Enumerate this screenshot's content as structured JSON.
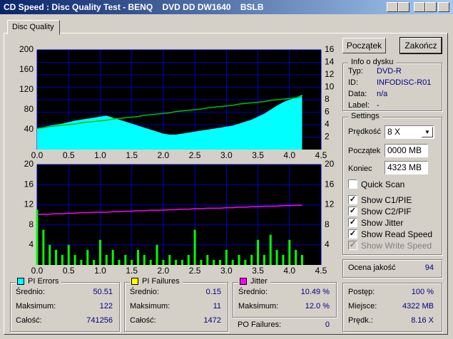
{
  "window": {
    "title": "CD Speed : Disc Quality Test - BENQ    DVD DD DW1640    BSLB"
  },
  "tab": "Disc Quality",
  "buttons": [
    "Początek",
    "Zakończ"
  ],
  "info": {
    "title": "Info o dysku",
    "rows": [
      [
        "Typ:",
        "DVD-R"
      ],
      [
        "ID:",
        "INFODISC-R01"
      ],
      [
        "Data:",
        "n/a"
      ],
      [
        "Label:",
        "-"
      ]
    ]
  },
  "settings": {
    "title": "Settings",
    "speed_label": "Prędkość",
    "speed": "8 X",
    "start_label": "Początek",
    "start": "0000 MB",
    "end_label": "Koniec",
    "end": "4323 MB",
    "checks": [
      {
        "label": "Quick Scan",
        "checked": false,
        "enabled": true
      },
      {
        "label": "Show C1/PIE",
        "checked": true,
        "enabled": true
      },
      {
        "label": "Show C2/PIF",
        "checked": true,
        "enabled": true
      },
      {
        "label": "Show Jitter",
        "checked": true,
        "enabled": true
      },
      {
        "label": "Show Read Speed",
        "checked": true,
        "enabled": true
      },
      {
        "label": "Show Write Speed",
        "checked": true,
        "enabled": false
      }
    ]
  },
  "quality": {
    "label": "Ocena jakość",
    "value": "94"
  },
  "progress": [
    [
      "Postęp:",
      "100 %"
    ],
    [
      "Miejsce:",
      "4322 MB"
    ],
    [
      "Prędk.:",
      "8.16 X"
    ]
  ],
  "stats": [
    {
      "title": "PI Errors",
      "color": "#00ffff",
      "rows": [
        [
          "Średnio:",
          "50.51"
        ],
        [
          "Maksimum:",
          "122"
        ],
        [
          "Całość:",
          "741256"
        ]
      ]
    },
    {
      "title": "PI Failures",
      "color": "#ffff00",
      "rows": [
        [
          "Średnio:",
          "0.15"
        ],
        [
          "Maksimum:",
          "11"
        ],
        [
          "Całość:",
          "1472"
        ]
      ]
    },
    {
      "title": "Jitter",
      "color": "#ff00ff",
      "rows": [
        [
          "Średnio:",
          "10.49 %"
        ],
        [
          "Maksimum:",
          "12.0 %"
        ]
      ]
    }
  ],
  "po_failures": [
    "PO Failures:",
    "0"
  ],
  "chart_data": [
    {
      "type": "area",
      "grid": "y2",
      "xlim": [
        0,
        4.5
      ],
      "ylim": [
        0,
        200
      ],
      "y2lim": [
        0,
        16
      ],
      "xticks": [
        {
          "value": 0,
          "label": "0.0"
        },
        0.5,
        {
          "value": 1,
          "label": "1.0"
        },
        1.5,
        {
          "value": 2,
          "label": "2.0"
        },
        2.5,
        {
          "value": 3,
          "label": "3.0"
        },
        3.5,
        {
          "value": 4,
          "label": "4.0"
        },
        4.5
      ],
      "yticks": [
        40,
        80,
        120,
        160,
        200
      ],
      "y2ticks": [
        2,
        4,
        6,
        8,
        10,
        12,
        14,
        16
      ],
      "x": [
        0,
        0.1,
        0.2,
        0.3,
        0.4,
        0.5,
        0.6,
        0.7,
        0.8,
        0.9,
        1,
        1.1,
        1.2,
        1.3,
        1.4,
        1.5,
        1.6,
        1.7,
        1.8,
        1.9,
        2,
        2.1,
        2.2,
        2.3,
        2.4,
        2.5,
        2.6,
        2.7,
        2.8,
        2.9,
        3,
        3.1,
        3.2,
        3.3,
        3.4,
        3.5,
        3.6,
        3.7,
        3.8,
        3.9,
        4,
        4.1,
        4.2
      ],
      "series": [
        {
          "color": "#00ffff",
          "values": [
            42,
            45,
            48,
            50,
            52,
            55,
            58,
            60,
            62,
            64,
            66,
            68,
            64,
            60,
            56,
            52,
            48,
            44,
            40,
            36,
            32,
            30,
            30,
            32,
            34,
            36,
            38,
            40,
            42,
            44,
            46,
            48,
            52,
            56,
            60,
            66,
            72,
            80,
            88,
            95,
            100,
            104,
            110
          ]
        },
        {
          "color": "#00c000",
          "type": "line",
          "axis": "y2",
          "values": [
            3.4,
            3.5,
            3.7,
            3.8,
            3.9,
            4.0,
            4.1,
            4.3,
            4.4,
            4.5,
            4.6,
            4.7,
            4.9,
            5.0,
            5.1,
            5.2,
            5.3,
            5.5,
            5.6,
            5.7,
            5.8,
            5.9,
            6.1,
            6.2,
            6.3,
            6.4,
            6.5,
            6.7,
            6.8,
            6.9,
            7.0,
            7.1,
            7.3,
            7.4,
            7.5,
            7.6,
            7.7,
            7.9,
            8.0,
            8.1,
            8.2,
            8.3,
            8.5
          ]
        }
      ]
    },
    {
      "type": "bar",
      "grid": "y",
      "xlim": [
        0,
        4.5
      ],
      "ylim": [
        0,
        20
      ],
      "y2lim": [
        0,
        20
      ],
      "xticks": [
        {
          "value": 0,
          "label": "0.0"
        },
        0.5,
        {
          "value": 1,
          "label": "1.0"
        },
        1.5,
        {
          "value": 2,
          "label": "2.0"
        },
        2.5,
        {
          "value": 3,
          "label": "3.0"
        },
        3.5,
        {
          "value": 4,
          "label": "4.0"
        },
        4.5
      ],
      "yticks": [
        4,
        8,
        12,
        16,
        20
      ],
      "y2ticks": [
        4,
        8,
        12,
        16,
        20
      ],
      "x": [
        0,
        0.1,
        0.2,
        0.3,
        0.4,
        0.5,
        0.6,
        0.7,
        0.8,
        0.9,
        1,
        1.1,
        1.2,
        1.3,
        1.4,
        1.5,
        1.6,
        1.7,
        1.8,
        1.9,
        2,
        2.1,
        2.2,
        2.3,
        2.4,
        2.5,
        2.6,
        2.7,
        2.8,
        2.9,
        3,
        3.1,
        3.2,
        3.3,
        3.4,
        3.5,
        3.6,
        3.7,
        3.8,
        3.9,
        4,
        4.1,
        4.2
      ],
      "series": [
        {
          "color": "#00ff00",
          "values": [
            11,
            7,
            4,
            3,
            2,
            4,
            2,
            1,
            3,
            1,
            5,
            2,
            3,
            1,
            2,
            1,
            3,
            2,
            1,
            4,
            1,
            2,
            1,
            1,
            2,
            7,
            1,
            2,
            1,
            1,
            3,
            1,
            2,
            1,
            2,
            5,
            2,
            6,
            3,
            2,
            5,
            3,
            2
          ]
        },
        {
          "color": "#ff00ff",
          "type": "line",
          "axis": "y2",
          "values": [
            10.0,
            10.1,
            10.1,
            10.2,
            10.2,
            10.3,
            10.3,
            10.4,
            10.4,
            10.5,
            10.5,
            10.5,
            10.6,
            10.6,
            10.7,
            10.7,
            10.8,
            10.8,
            10.9,
            10.9,
            10.9,
            11.0,
            11.0,
            11.1,
            11.1,
            11.2,
            11.2,
            11.3,
            11.3,
            11.3,
            11.4,
            11.4,
            11.5,
            11.5,
            11.6,
            11.6,
            11.7,
            11.7,
            11.7,
            11.8,
            11.8,
            11.9,
            11.9
          ]
        }
      ]
    }
  ]
}
